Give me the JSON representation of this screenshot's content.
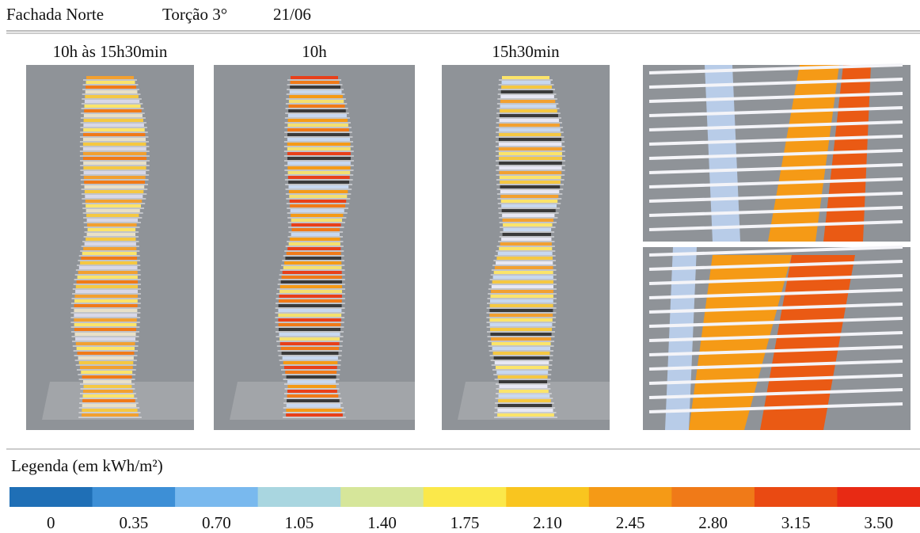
{
  "header": {
    "facade": "Fachada Norte",
    "torsion": "Torção 3°",
    "date": "21/06"
  },
  "panels": [
    {
      "label": "10h às 15h30min"
    },
    {
      "label": "10h"
    },
    {
      "label": "15h30min"
    }
  ],
  "legend": {
    "title": "Legenda (em kWh/m²)",
    "items": [
      {
        "label": "0",
        "color": "#1f6fb6"
      },
      {
        "label": "0.35",
        "color": "#3d8fd6"
      },
      {
        "label": "0.70",
        "color": "#79b9ee"
      },
      {
        "label": "1.05",
        "color": "#a9d6e0"
      },
      {
        "label": "1.40",
        "color": "#d6e69a"
      },
      {
        "label": "1.75",
        "color": "#fbe84a"
      },
      {
        "label": "2.10",
        "color": "#f9c51f"
      },
      {
        "label": "2.45",
        "color": "#f59a16"
      },
      {
        "label": "2.80",
        "color": "#f07a18"
      },
      {
        "label": "3.15",
        "color": "#ea4a12"
      },
      {
        "label": "3.50",
        "color": "#e82a14"
      }
    ]
  }
}
